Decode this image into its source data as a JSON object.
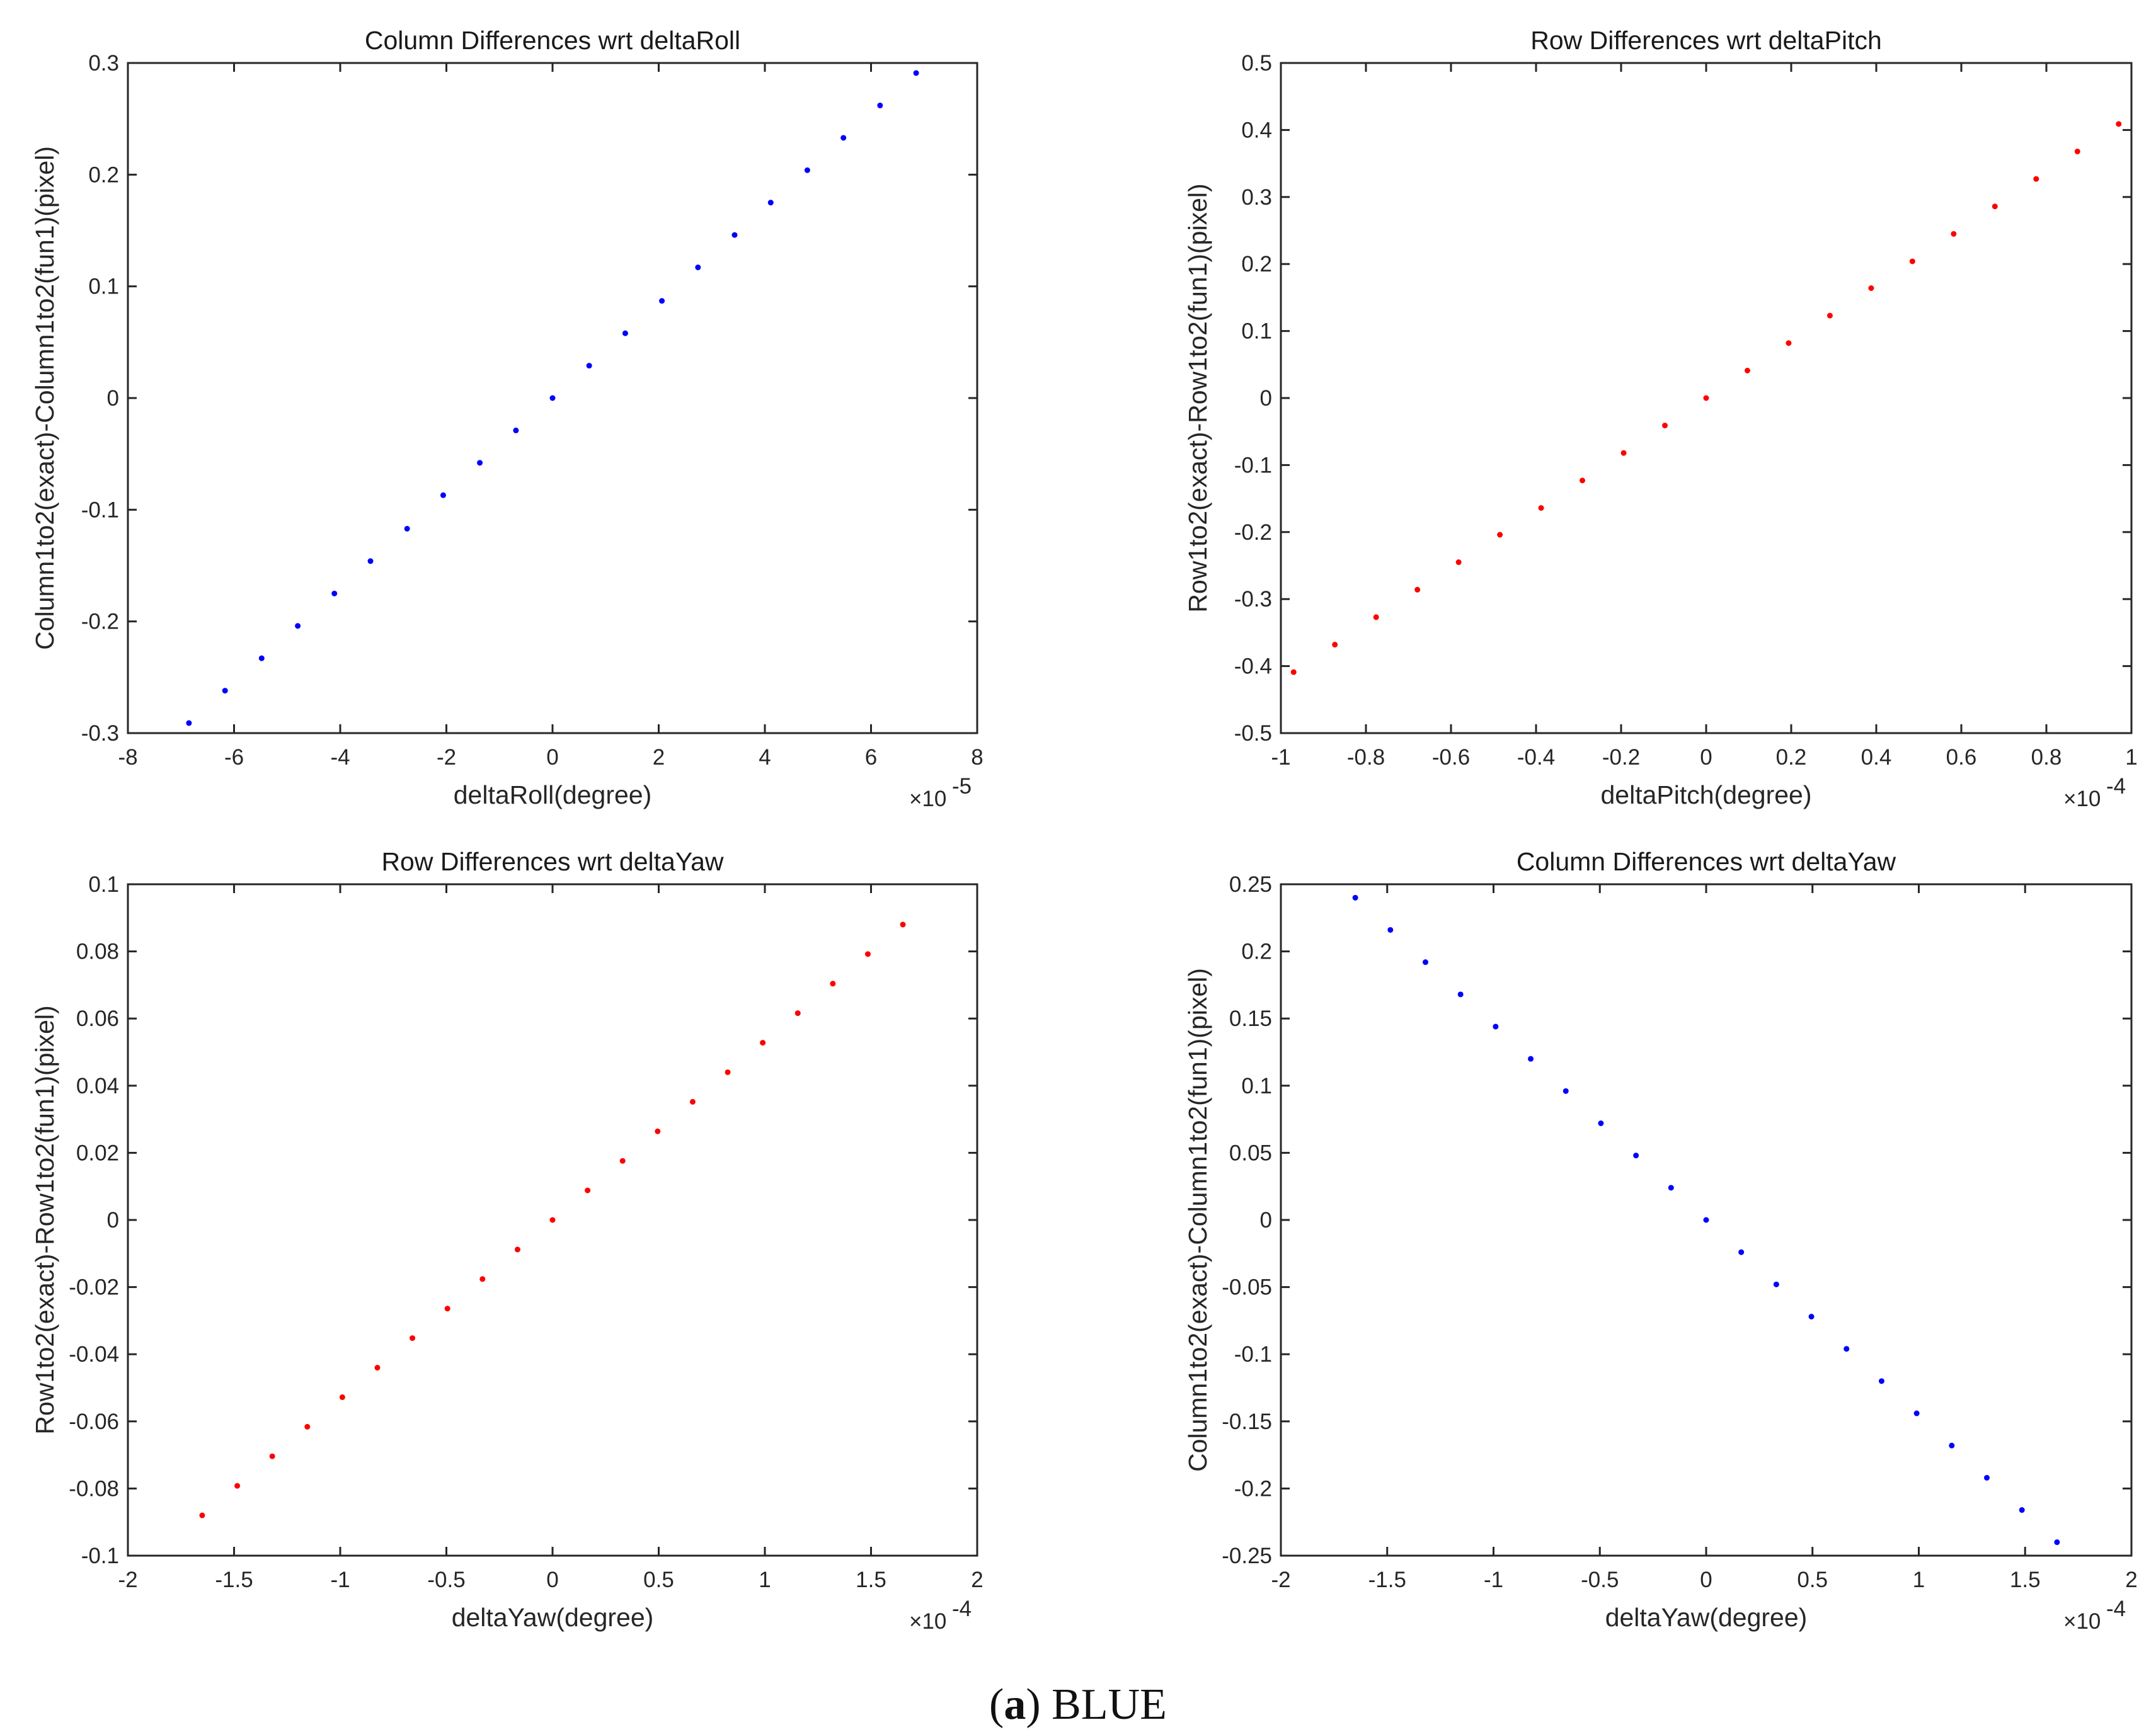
{
  "caption": {
    "open": "(",
    "letter": "a",
    "close": ")",
    "text": " BLUE"
  },
  "chart_data": [
    {
      "type": "scatter",
      "title": "Column Differences wrt deltaRoll",
      "xlabel": "deltaRoll(degree)",
      "ylabel": "Column1to2(exact)-Column1to2(fun1)(pixel)",
      "x_exponent": "-5",
      "xlim": [
        -8,
        8
      ],
      "ylim": [
        -0.3,
        0.3
      ],
      "xticks": [
        -8,
        -6,
        -4,
        -2,
        0,
        2,
        4,
        6,
        8
      ],
      "xtick_labels": [
        "-8",
        "-6",
        "-4",
        "-2",
        "0",
        "2",
        "4",
        "6",
        "8"
      ],
      "yticks": [
        -0.3,
        -0.2,
        -0.1,
        0,
        0.1,
        0.2,
        0.3
      ],
      "ytick_labels": [
        "-0.3",
        "-0.2",
        "-0.1",
        "0",
        "0.1",
        "0.2",
        "0.3"
      ],
      "marker_color": "#0000ff",
      "x": [
        -6.85,
        -6.17,
        -5.48,
        -4.8,
        -4.11,
        -3.43,
        -2.74,
        -2.06,
        -1.37,
        -0.69,
        0,
        0.69,
        1.37,
        2.06,
        2.74,
        3.43,
        4.11,
        4.8,
        5.48,
        6.17,
        6.85
      ],
      "y": [
        -0.291,
        -0.262,
        -0.233,
        -0.204,
        -0.175,
        -0.146,
        -0.117,
        -0.087,
        -0.058,
        -0.029,
        0,
        0.029,
        0.058,
        0.087,
        0.117,
        0.146,
        0.175,
        0.204,
        0.233,
        0.262,
        0.291
      ]
    },
    {
      "type": "scatter",
      "title": "Row Differences wrt deltaPitch",
      "xlabel": "deltaPitch(degree)",
      "ylabel": "Row1to2(exact)-Row1to2(fun1)(pixel)",
      "x_exponent": "-4",
      "xlim": [
        -1,
        1
      ],
      "ylim": [
        -0.5,
        0.5
      ],
      "xticks": [
        -1,
        -0.8,
        -0.6,
        -0.4,
        -0.2,
        0,
        0.2,
        0.4,
        0.6,
        0.8,
        1
      ],
      "xtick_labels": [
        "-1",
        "-0.8",
        "-0.6",
        "-0.4",
        "-0.2",
        "0",
        "0.2",
        "0.4",
        "0.6",
        "0.8",
        "1"
      ],
      "yticks": [
        -0.5,
        -0.4,
        -0.3,
        -0.2,
        -0.1,
        0,
        0.1,
        0.2,
        0.3,
        0.4,
        0.5
      ],
      "ytick_labels": [
        "-0.5",
        "-0.4",
        "-0.3",
        "-0.2",
        "-0.1",
        "0",
        "0.1",
        "0.2",
        "0.3",
        "0.4",
        "0.5"
      ],
      "marker_color": "#ff0000",
      "x": [
        -0.97,
        -0.873,
        -0.776,
        -0.679,
        -0.582,
        -0.485,
        -0.388,
        -0.291,
        -0.194,
        -0.097,
        0,
        0.097,
        0.194,
        0.291,
        0.388,
        0.485,
        0.582,
        0.679,
        0.776,
        0.873,
        0.97
      ],
      "y": [
        -0.409,
        -0.368,
        -0.327,
        -0.286,
        -0.245,
        -0.204,
        -0.164,
        -0.123,
        -0.082,
        -0.041,
        0,
        0.041,
        0.082,
        0.123,
        0.164,
        0.204,
        0.245,
        0.286,
        0.327,
        0.368,
        0.409
      ]
    },
    {
      "type": "scatter",
      "title": "Row Differences wrt deltaYaw",
      "xlabel": "deltaYaw(degree)",
      "ylabel": "Row1to2(exact)-Row1to2(fun1)(pixel)",
      "x_exponent": "-4",
      "xlim": [
        -2,
        2
      ],
      "ylim": [
        -0.1,
        0.1
      ],
      "xticks": [
        -2,
        -1.5,
        -1,
        -0.5,
        0,
        0.5,
        1,
        1.5,
        2
      ],
      "xtick_labels": [
        "-2",
        "-1.5",
        "-1",
        "-0.5",
        "0",
        "0.5",
        "1",
        "1.5",
        "2"
      ],
      "yticks": [
        -0.1,
        -0.08,
        -0.06,
        -0.04,
        -0.02,
        0,
        0.02,
        0.04,
        0.06,
        0.08,
        0.1
      ],
      "ytick_labels": [
        "-0.1",
        "-0.08",
        "-0.06",
        "-0.04",
        "-0.02",
        "0",
        "0.02",
        "0.04",
        "0.06",
        "0.08",
        "0.1"
      ],
      "marker_color": "#ff0000",
      "x": [
        -1.65,
        -1.485,
        -1.32,
        -1.155,
        -0.99,
        -0.825,
        -0.66,
        -0.495,
        -0.33,
        -0.165,
        0,
        0.165,
        0.33,
        0.495,
        0.66,
        0.825,
        0.99,
        1.155,
        1.32,
        1.485,
        1.65
      ],
      "y": [
        -0.088,
        -0.0792,
        -0.0704,
        -0.0616,
        -0.0528,
        -0.044,
        -0.0352,
        -0.0264,
        -0.0176,
        -0.0088,
        0,
        0.0088,
        0.0176,
        0.0264,
        0.0352,
        0.044,
        0.0528,
        0.0616,
        0.0704,
        0.0792,
        0.088
      ]
    },
    {
      "type": "scatter",
      "title": "Column Differences wrt deltaYaw",
      "xlabel": "deltaYaw(degree)",
      "ylabel": "Column1to2(exact)-Column1to2(fun1)(pixel)",
      "x_exponent": "-4",
      "xlim": [
        -2,
        2
      ],
      "ylim": [
        -0.25,
        0.25
      ],
      "xticks": [
        -2,
        -1.5,
        -1,
        -0.5,
        0,
        0.5,
        1,
        1.5,
        2
      ],
      "xtick_labels": [
        "-2",
        "-1.5",
        "-1",
        "-0.5",
        "0",
        "0.5",
        "1",
        "1.5",
        "2"
      ],
      "yticks": [
        -0.25,
        -0.2,
        -0.15,
        -0.1,
        -0.05,
        0,
        0.05,
        0.1,
        0.15,
        0.2,
        0.25
      ],
      "ytick_labels": [
        "-0.25",
        "-0.2",
        "-0.15",
        "-0.1",
        "-0.05",
        "0",
        "0.05",
        "0.1",
        "0.15",
        "0.2",
        "0.25"
      ],
      "marker_color": "#0000ff",
      "x": [
        -1.65,
        -1.485,
        -1.32,
        -1.155,
        -0.99,
        -0.825,
        -0.66,
        -0.495,
        -0.33,
        -0.165,
        0,
        0.165,
        0.33,
        0.495,
        0.66,
        0.825,
        0.99,
        1.155,
        1.32,
        1.485,
        1.65
      ],
      "y": [
        0.24,
        0.216,
        0.192,
        0.168,
        0.144,
        0.12,
        0.096,
        0.072,
        0.048,
        0.024,
        0,
        -0.024,
        -0.048,
        -0.072,
        -0.096,
        -0.12,
        -0.144,
        -0.168,
        -0.192,
        -0.216,
        -0.24
      ]
    }
  ]
}
